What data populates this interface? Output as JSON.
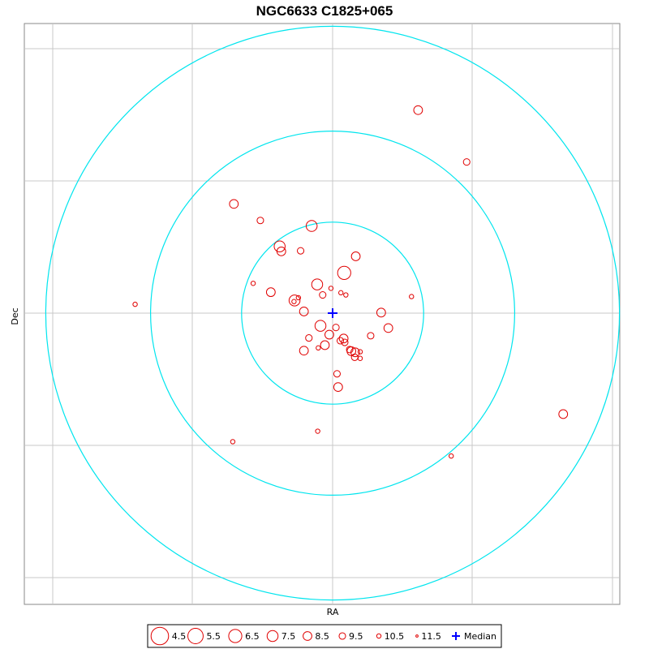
{
  "chart_data": {
    "type": "scatter",
    "title": "NGC6633  C1825+065",
    "xlabel": "RA",
    "ylabel": "Dec",
    "grid": true,
    "legend_placement": "bottom-center",
    "colors": {
      "stars": "#e00000",
      "rings": "#00e5ee",
      "median": "#0000ff",
      "grid": "#c8c8c8"
    },
    "median": {
      "x": 0,
      "y": 0
    },
    "rings": [
      0.165,
      0.33,
      0.52
    ],
    "legend": {
      "magnitudes": [
        "4.5",
        "5.5",
        "6.5",
        "7.5",
        "8.5",
        "9.5",
        "10.5",
        "11.5"
      ],
      "median_label": "Median"
    },
    "stars": [
      {
        "x": 0.155,
        "y": 0.368,
        "mag": 8.5
      },
      {
        "x": 0.243,
        "y": 0.274,
        "mag": 9.5
      },
      {
        "x": -0.179,
        "y": 0.198,
        "mag": 8.5
      },
      {
        "x": -0.131,
        "y": 0.168,
        "mag": 9.5
      },
      {
        "x": -0.038,
        "y": 0.158,
        "mag": 7.5
      },
      {
        "x": -0.096,
        "y": 0.121,
        "mag": 7.5
      },
      {
        "x": -0.093,
        "y": 0.112,
        "mag": 8.5
      },
      {
        "x": -0.058,
        "y": 0.113,
        "mag": 9.5
      },
      {
        "x": 0.042,
        "y": 0.103,
        "mag": 8.5
      },
      {
        "x": 0.021,
        "y": 0.073,
        "mag": 6.5
      },
      {
        "x": -0.144,
        "y": 0.054,
        "mag": 10.5
      },
      {
        "x": -0.028,
        "y": 0.052,
        "mag": 7.5
      },
      {
        "x": -0.003,
        "y": 0.045,
        "mag": 10.5
      },
      {
        "x": 0.015,
        "y": 0.037,
        "mag": 10.5
      },
      {
        "x": 0.024,
        "y": 0.033,
        "mag": 10.5
      },
      {
        "x": -0.112,
        "y": 0.038,
        "mag": 8.5
      },
      {
        "x": -0.062,
        "y": 0.028,
        "mag": 10.5
      },
      {
        "x": -0.07,
        "y": 0.021,
        "mag": 10.5
      },
      {
        "x": -0.069,
        "y": 0.023,
        "mag": 7.5
      },
      {
        "x": -0.018,
        "y": 0.033,
        "mag": 9.5
      },
      {
        "x": 0.143,
        "y": 0.03,
        "mag": 10.5
      },
      {
        "x": -0.358,
        "y": 0.016,
        "mag": 10.5
      },
      {
        "x": -0.052,
        "y": 0.003,
        "mag": 8.5
      },
      {
        "x": 0.088,
        "y": 0.001,
        "mag": 8.5
      },
      {
        "x": -0.022,
        "y": -0.023,
        "mag": 7.5
      },
      {
        "x": 0.006,
        "y": -0.026,
        "mag": 9.5
      },
      {
        "x": 0.101,
        "y": -0.027,
        "mag": 8.5
      },
      {
        "x": -0.006,
        "y": -0.039,
        "mag": 8.5
      },
      {
        "x": 0.069,
        "y": -0.041,
        "mag": 9.5
      },
      {
        "x": -0.043,
        "y": -0.045,
        "mag": 9.5
      },
      {
        "x": 0.02,
        "y": -0.046,
        "mag": 8.5
      },
      {
        "x": 0.014,
        "y": -0.05,
        "mag": 9.5
      },
      {
        "x": 0.022,
        "y": -0.053,
        "mag": 9.5
      },
      {
        "x": -0.014,
        "y": -0.058,
        "mag": 8.5
      },
      {
        "x": -0.026,
        "y": -0.063,
        "mag": 10.5
      },
      {
        "x": -0.052,
        "y": -0.068,
        "mag": 8.5
      },
      {
        "x": 0.031,
        "y": -0.066,
        "mag": 9.5
      },
      {
        "x": 0.034,
        "y": -0.069,
        "mag": 8.5
      },
      {
        "x": 0.041,
        "y": -0.071,
        "mag": 8.5
      },
      {
        "x": 0.05,
        "y": -0.07,
        "mag": 10.5
      },
      {
        "x": 0.04,
        "y": -0.08,
        "mag": 9.5
      },
      {
        "x": 0.05,
        "y": -0.082,
        "mag": 10.5
      },
      {
        "x": 0.008,
        "y": -0.11,
        "mag": 9.5
      },
      {
        "x": 0.01,
        "y": -0.134,
        "mag": 8.5
      },
      {
        "x": -0.027,
        "y": -0.214,
        "mag": 10.5
      },
      {
        "x": -0.181,
        "y": -0.233,
        "mag": 10.5
      },
      {
        "x": 0.215,
        "y": -0.259,
        "mag": 10.5
      },
      {
        "x": 0.418,
        "y": -0.183,
        "mag": 8.5
      }
    ]
  }
}
